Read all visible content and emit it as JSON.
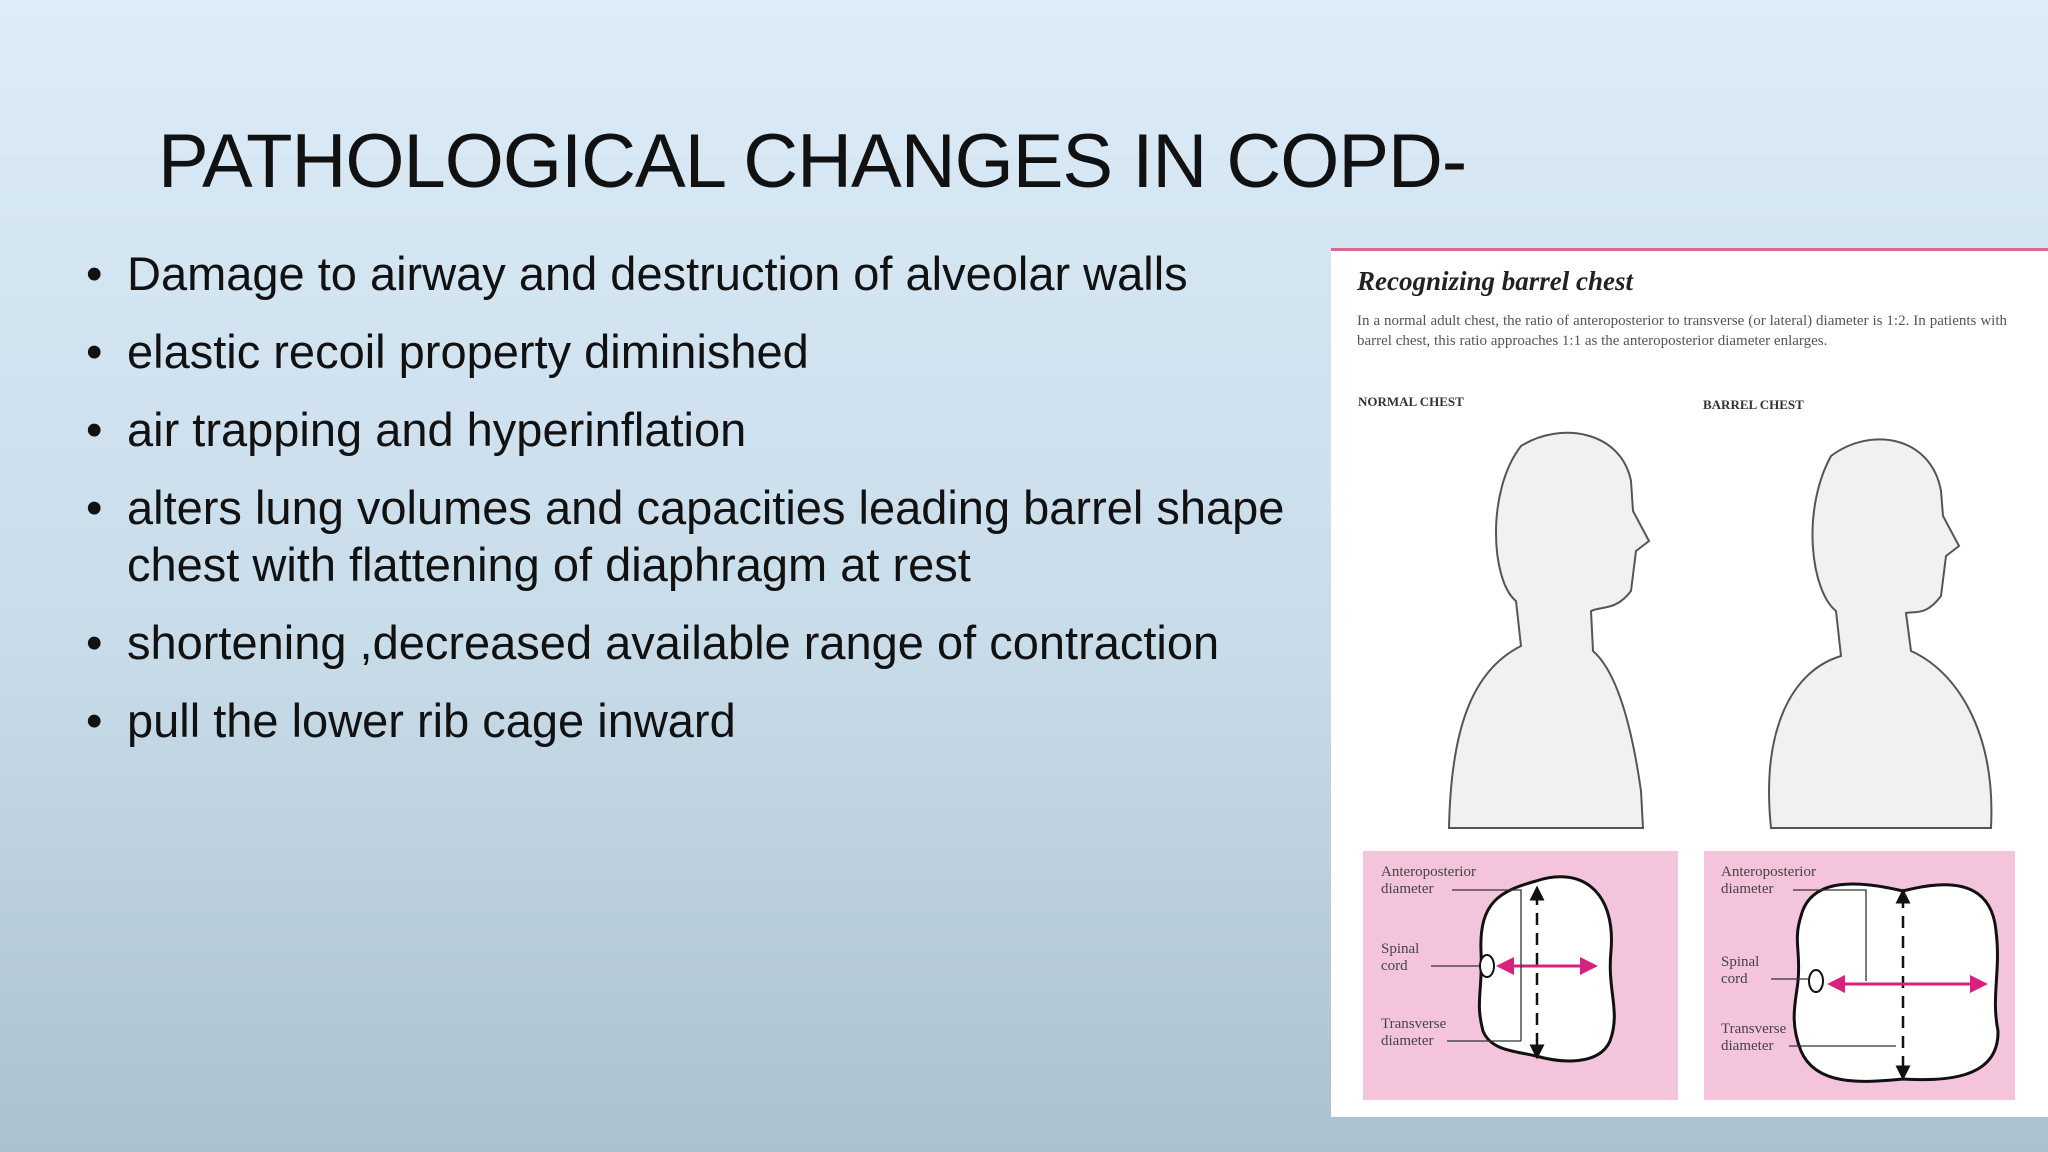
{
  "title": "PATHOLOGICAL CHANGES IN COPD-",
  "bullets": [
    "Damage to airway and destruction of alveolar walls",
    "elastic recoil property diminished",
    "air trapping and hyperinflation",
    "alters lung volumes and capacities leading barrel shape chest with flattening of diaphragm at rest",
    "shortening ,decreased available range of contraction",
    "pull the lower rib cage inward"
  ],
  "figure": {
    "title": "Recognizing barrel chest",
    "caption": "In a normal adult chest, the ratio of anteroposterior to transverse (or lateral) diameter is 1:2. In patients with barrel chest, this ratio approaches 1:1 as the anteroposterior diameter enlarges.",
    "panels": [
      {
        "label": "NORMAL CHEST",
        "diagram_labels": [
          "Anteroposterior diameter",
          "Spinal cord",
          "Transverse diameter"
        ]
      },
      {
        "label": "BARREL CHEST",
        "diagram_labels": [
          "Anteroposterior diameter",
          "Spinal cord",
          "Transverse diameter"
        ]
      }
    ]
  }
}
